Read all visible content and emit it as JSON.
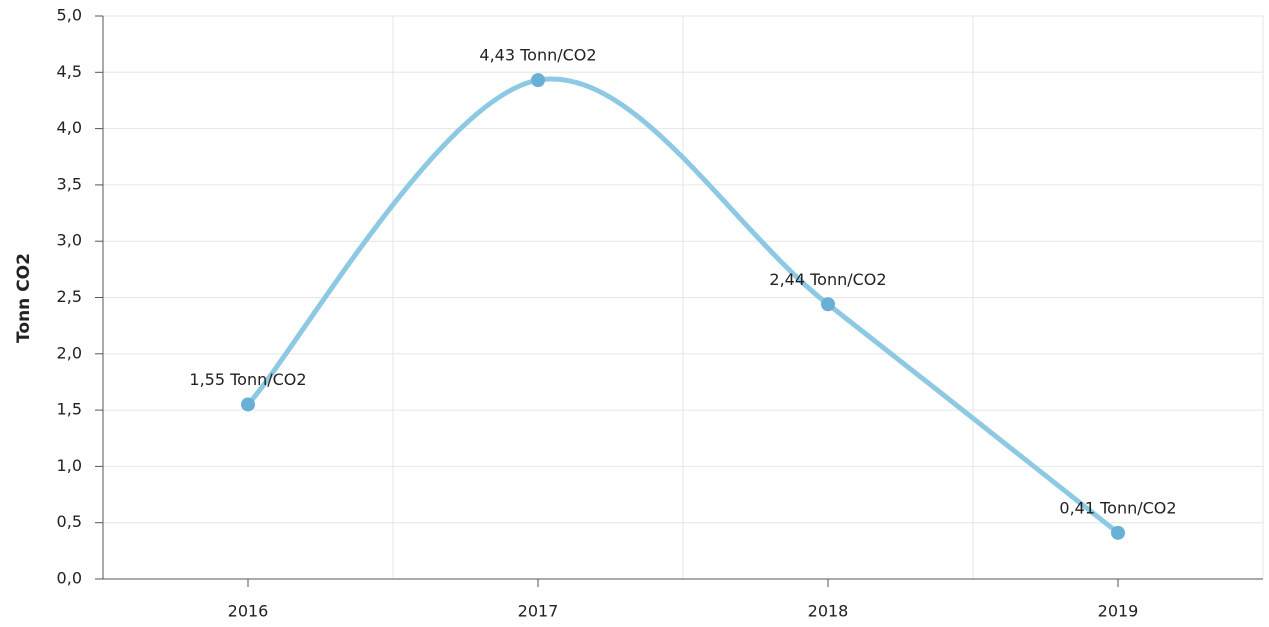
{
  "chart_data": {
    "type": "line",
    "y_axis_label": "Tonn CO2",
    "categories": [
      "2016",
      "2017",
      "2018",
      "2019"
    ],
    "series": [
      {
        "name": "Tonn CO2",
        "color": "#8ec9e4",
        "marker_color": "#6aafd6",
        "values": [
          1.55,
          4.43,
          2.44,
          0.41
        ],
        "value_labels": [
          "1,55 Tonn/CO2",
          "4,43 Tonn/CO2",
          "2,44 Tonn/CO2",
          "0,41 Tonn/CO2"
        ]
      }
    ],
    "ylim": [
      0,
      5
    ],
    "yticks": [
      {
        "value": 0,
        "label": "0,0"
      },
      {
        "value": 0.5,
        "label": "0,5"
      },
      {
        "value": 1,
        "label": "1,0"
      },
      {
        "value": 1.5,
        "label": "1,5"
      },
      {
        "value": 2,
        "label": "2,0"
      },
      {
        "value": 2.5,
        "label": "2,5"
      },
      {
        "value": 3,
        "label": "3,0"
      },
      {
        "value": 3.5,
        "label": "3,5"
      },
      {
        "value": 4,
        "label": "4,0"
      },
      {
        "value": 4.5,
        "label": "4,5"
      },
      {
        "value": 5,
        "label": "5,0"
      }
    ],
    "grid": true
  }
}
